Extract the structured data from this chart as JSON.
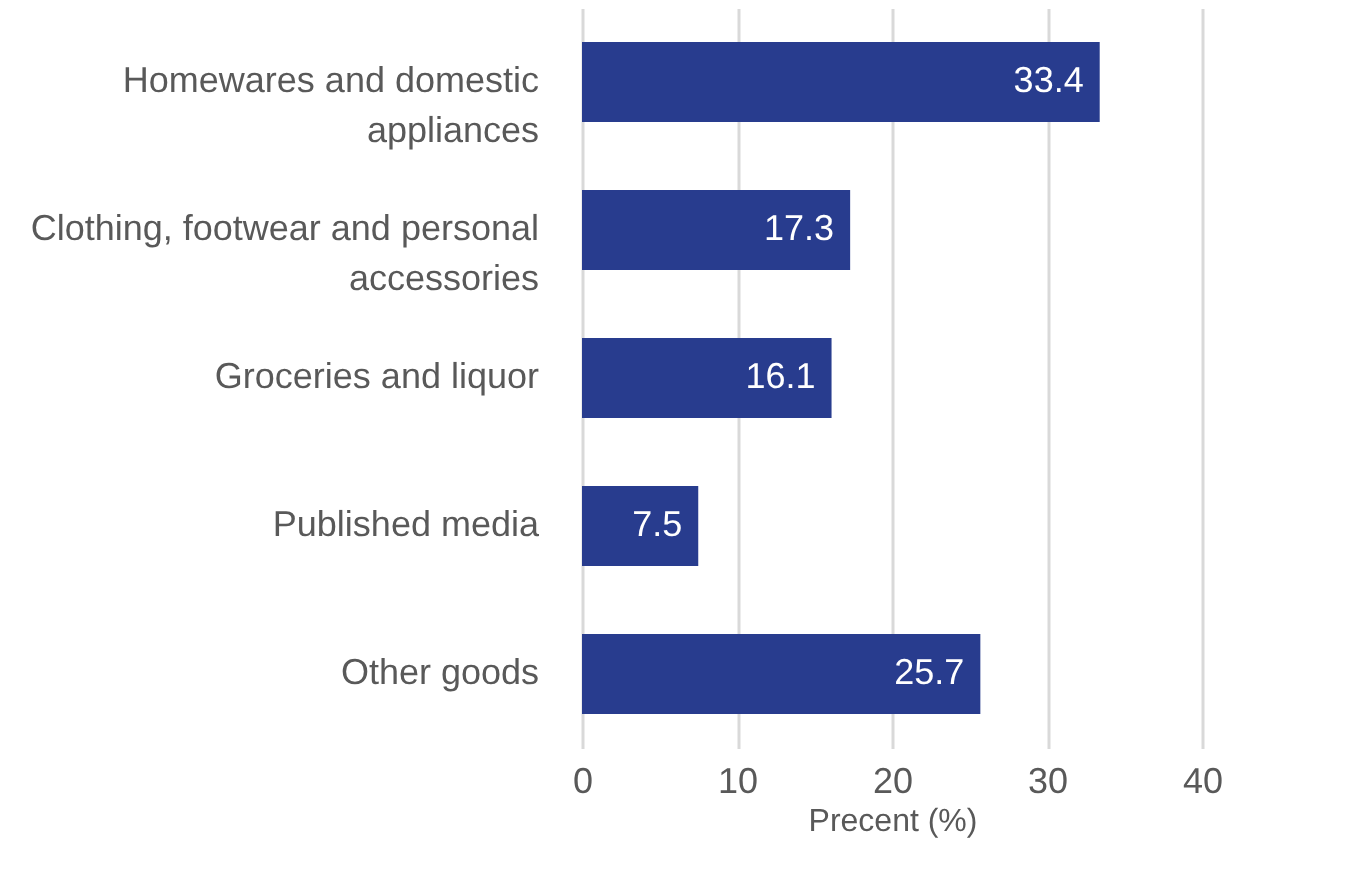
{
  "chart_data": {
    "type": "bar",
    "orientation": "horizontal",
    "xlabel": "Precent (%)",
    "categories": [
      "Homewares and domestic appliances",
      "Clothing, footwear and personal accessories",
      "Groceries and liquor",
      "Published media",
      "Other goods"
    ],
    "values": [
      33.4,
      17.3,
      16.1,
      7.5,
      25.7
    ],
    "color": "#283c8e",
    "xlim": [
      0,
      40
    ],
    "xticks": [
      0,
      10,
      20,
      30,
      40
    ],
    "grid": "x",
    "data_labels": true
  }
}
